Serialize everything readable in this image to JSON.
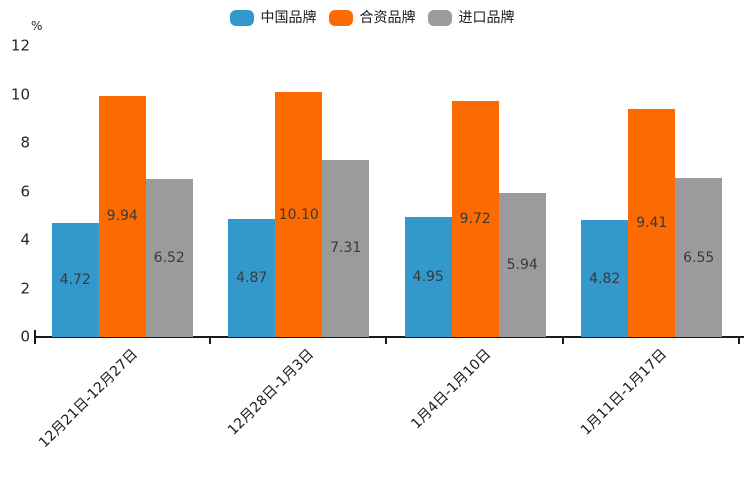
{
  "chart_data": {
    "type": "bar",
    "title": "",
    "unit_label": "%",
    "legend_position": "top-center",
    "grid": false,
    "value_labels_position": "centered-in-bar",
    "categories": [
      "12月21日-12月27日",
      "12月28日-1月3日",
      "1月4日-1月10日",
      "1月11日-1月17日"
    ],
    "series": [
      {
        "name": "中国品牌",
        "color": "#3398CB",
        "values": [
          4.72,
          4.87,
          4.95,
          4.82
        ],
        "labels": [
          "4.72",
          "4.87",
          "4.95",
          "4.82"
        ]
      },
      {
        "name": "合资品牌",
        "color": "#FC6A02",
        "values": [
          9.94,
          10.1,
          9.72,
          9.41
        ],
        "labels": [
          "9.94",
          "10.10",
          "9.72",
          "9.41"
        ]
      },
      {
        "name": "进口品牌",
        "color": "#9B9B9B",
        "values": [
          6.52,
          7.31,
          5.94,
          6.55
        ],
        "labels": [
          "6.52",
          "7.31",
          "5.94",
          "6.55"
        ]
      }
    ],
    "y_axis": {
      "min": 0,
      "max": 12,
      "tick_step": 2,
      "ticks": [
        0,
        2,
        4,
        6,
        8,
        10,
        12
      ]
    },
    "colors": {
      "axis": "#1a1a1a",
      "tick_text": "#262626",
      "bar_label_text": "#3a3a3a",
      "background": "#ffffff"
    }
  }
}
